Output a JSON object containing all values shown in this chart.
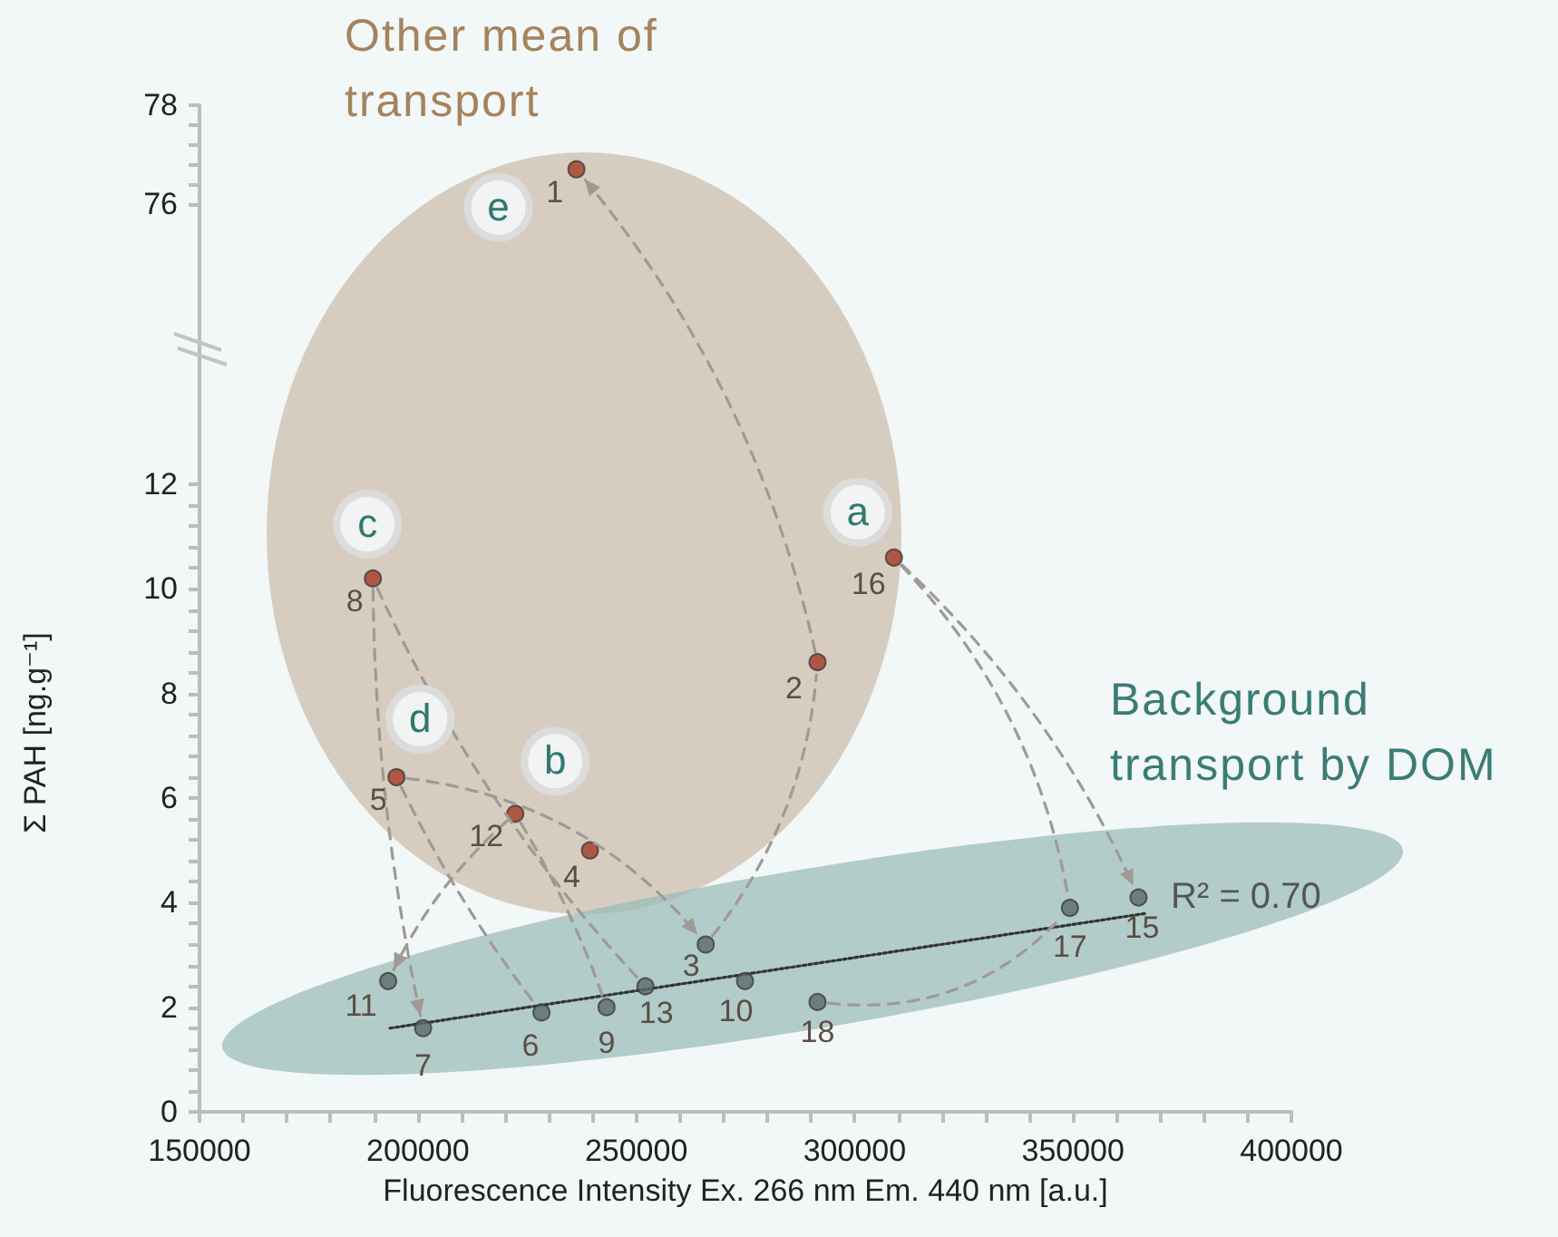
{
  "chart_data": [
    {
      "type": "scatter",
      "xlim": [
        150000,
        400000
      ],
      "ylim": [
        73,
        78
      ],
      "yticks": [
        76,
        {
          "value": 76.4,
          "label": null
        },
        {
          "value": 76.8,
          "label": null
        },
        {
          "value": 77.2,
          "label": null
        },
        {
          "value": 77.6,
          "label": null
        },
        78
      ],
      "tick_labels": "y",
      "marker": "circle",
      "series": [
        {
          "color": "#a53a26",
          "x": [
            236300
          ],
          "values": [
            76.7
          ]
        }
      ],
      "annotations": [
        {
          "text": "1",
          "x": 236300,
          "y": 76.7
        },
        {
          "text": "e",
          "x": 236300,
          "y": 76.7
        },
        "Other mean of transport"
      ]
    },
    {
      "type": "scatter",
      "xlabel": "Fluorescence Intensity Ex. 266 nm Em. 440 nm [a.u.]",
      "ylabel": "Σ PAH [ng.g⁻¹]",
      "xlim": [
        150000,
        400000
      ],
      "xticks": [
        150000,
        {
          "value": 160000,
          "label": null
        },
        {
          "value": 170000,
          "label": null
        },
        {
          "value": 180000,
          "label": null
        },
        {
          "value": 190000,
          "label": null
        },
        200000,
        {
          "value": 210000,
          "label": null
        },
        {
          "value": 220000,
          "label": null
        },
        {
          "value": 230000,
          "label": null
        },
        {
          "value": 240000,
          "label": null
        },
        250000,
        {
          "value": 260000,
          "label": null
        },
        {
          "value": 270000,
          "label": null
        },
        {
          "value": 280000,
          "label": null
        },
        {
          "value": 290000,
          "label": null
        },
        300000,
        {
          "value": 310000,
          "label": null
        },
        {
          "value": 320000,
          "label": null
        },
        {
          "value": 330000,
          "label": null
        },
        {
          "value": 340000,
          "label": null
        },
        350000,
        {
          "value": 360000,
          "label": null
        },
        {
          "value": 370000,
          "label": null
        },
        {
          "value": 380000,
          "label": null
        },
        {
          "value": 390000,
          "label": null
        },
        400000
      ],
      "ylim": [
        0,
        14.5
      ],
      "yticks": [
        0,
        {
          "value": 0.4,
          "label": null
        },
        {
          "value": 0.8,
          "label": null
        },
        {
          "value": 1.2,
          "label": null
        },
        {
          "value": 1.6,
          "label": null
        },
        2,
        {
          "value": 2.4,
          "label": null
        },
        {
          "value": 2.8,
          "label": null
        },
        {
          "value": 3.2,
          "label": null
        },
        {
          "value": 3.6,
          "label": null
        },
        4,
        {
          "value": 4.4,
          "label": null
        },
        {
          "value": 4.8,
          "label": null
        },
        {
          "value": 5.2,
          "label": null
        },
        {
          "value": 5.6,
          "label": null
        },
        6,
        {
          "value": 6.4,
          "label": null
        },
        {
          "value": 6.8,
          "label": null
        },
        {
          "value": 7.2,
          "label": null
        },
        {
          "value": 7.6,
          "label": null
        },
        8,
        {
          "value": 8.4,
          "label": null
        },
        {
          "value": 8.8,
          "label": null
        },
        {
          "value": 9.2,
          "label": null
        },
        {
          "value": 9.6,
          "label": null
        },
        10,
        {
          "value": 10.4,
          "label": null
        },
        {
          "value": 10.8,
          "label": null
        },
        {
          "value": 11.2,
          "label": null
        },
        {
          "value": 11.6,
          "label": null
        },
        12
      ],
      "marker": "circle",
      "series": [
        {
          "color": "#a53a26",
          "x": [
            189700,
            195100,
            222300,
            239400,
            291500,
            309000
          ],
          "values": [
            10.2,
            6.4,
            5.7,
            5.0,
            8.6,
            10.6
          ]
        },
        {
          "color": "#5a6966",
          "x": [
            193200,
            201200,
            228300,
            243200,
            252100,
            265900,
            274900,
            291500,
            349300,
            365000
          ],
          "values": [
            2.5,
            1.6,
            1.9,
            2.0,
            2.4,
            3.2,
            2.5,
            2.1,
            3.9,
            4.1
          ]
        },
        {
          "type": "line",
          "color": "#333333",
          "line_style": "dotted",
          "marker": "none",
          "x": [
            193600,
            367000
          ],
          "values": [
            1.6,
            3.8
          ]
        }
      ],
      "annotations": [
        {
          "text": "8",
          "x": 189700,
          "y": 10.2
        },
        {
          "text": "5",
          "x": 195100,
          "y": 6.4
        },
        {
          "text": "12",
          "x": 222300,
          "y": 5.7
        },
        {
          "text": "4",
          "x": 239400,
          "y": 5.0
        },
        {
          "text": "2",
          "x": 291500,
          "y": 8.6
        },
        {
          "text": "16",
          "x": 309000,
          "y": 10.6
        },
        {
          "text": "11",
          "x": 193200,
          "y": 2.5
        },
        {
          "text": "7",
          "x": 201200,
          "y": 1.6
        },
        {
          "text": "6",
          "x": 228300,
          "y": 1.9
        },
        {
          "text": "9",
          "x": 243200,
          "y": 2.0
        },
        {
          "text": "13",
          "x": 252100,
          "y": 2.4
        },
        {
          "text": "3",
          "x": 265900,
          "y": 3.2
        },
        {
          "text": "10",
          "x": 274900,
          "y": 2.5
        },
        {
          "text": "18",
          "x": 291500,
          "y": 2.1
        },
        {
          "text": "17",
          "x": 349300,
          "y": 3.9
        },
        {
          "text": "15",
          "x": 365000,
          "y": 4.1
        },
        {
          "text": "c",
          "x": 189700,
          "y": 10.2
        },
        {
          "text": "d",
          "x": 195100,
          "y": 6.4
        },
        {
          "text": "b",
          "x": 222300,
          "y": 5.7
        },
        {
          "text": "a",
          "x": 309000,
          "y": 10.6
        },
        "Background transport by DOM",
        {
          "text": "R² = 0.70",
          "x": 367000,
          "y": 3.8
        }
      ]
    }
  ]
}
